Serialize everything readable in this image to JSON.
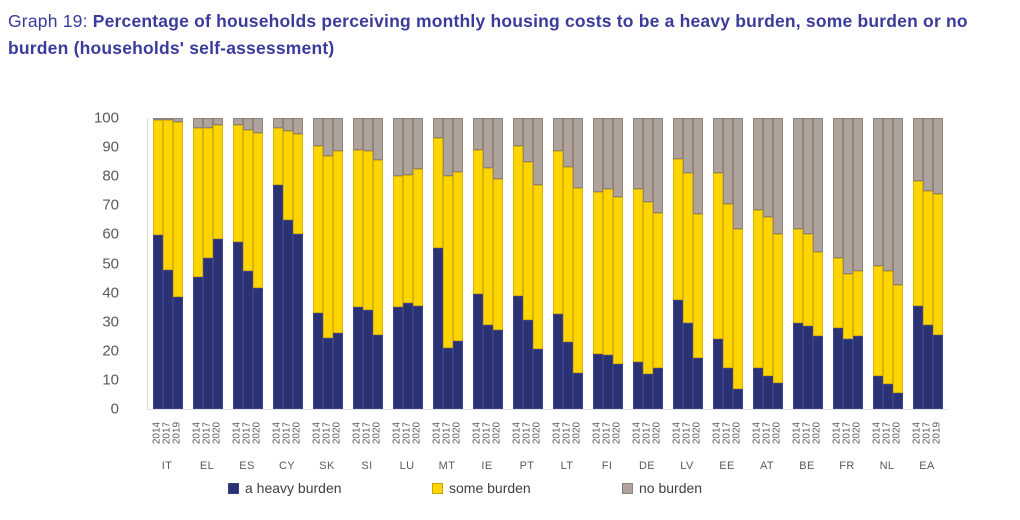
{
  "title": {
    "prefix": "Graph 19: ",
    "text": "Percentage of households perceiving monthly housing costs to be a heavy burden, some burden or no burden (households' self-assessment)"
  },
  "colors": {
    "heavy_burden": "#2B3273",
    "some_burden": "#FFD500",
    "no_burden": "#AFA39C",
    "title_text": "#3B3B9B",
    "axis_text": "#595959"
  },
  "chart_data": {
    "type": "bar",
    "subtype": "stacked-column-100",
    "ylim": [
      0,
      100
    ],
    "yticks": [
      0,
      10,
      20,
      30,
      40,
      50,
      60,
      70,
      80,
      90,
      100
    ],
    "grid": false,
    "legend_position": "bottom",
    "series_meta": [
      {
        "key": "heavy",
        "label": "a heavy burden",
        "color": "#2B3273"
      },
      {
        "key": "some",
        "label": "some burden",
        "color": "#FFD500"
      },
      {
        "key": "no",
        "label": "no burden",
        "color": "#AFA39C"
      }
    ],
    "groups": [
      {
        "country": "IT",
        "years": [
          "2014",
          "2017",
          "2019"
        ],
        "heavy": [
          60,
          48,
          38.5
        ],
        "some": [
          39.5,
          51.5,
          60
        ],
        "no": [
          0.5,
          0.5,
          1.5
        ]
      },
      {
        "country": "EL",
        "years": [
          "2014",
          "2017",
          "2020"
        ],
        "heavy": [
          45.5,
          52,
          58.5
        ],
        "some": [
          51,
          44.5,
          39
        ],
        "no": [
          3.5,
          3.5,
          2.5
        ]
      },
      {
        "country": "ES",
        "years": [
          "2014",
          "2017",
          "2020"
        ],
        "heavy": [
          57.5,
          47.5,
          41.5
        ],
        "some": [
          40,
          48.5,
          53.5
        ],
        "no": [
          2.5,
          4,
          5
        ]
      },
      {
        "country": "CY",
        "years": [
          "2014",
          "2017",
          "2020"
        ],
        "heavy": [
          77,
          65,
          60
        ],
        "some": [
          19.5,
          30.5,
          34.5
        ],
        "no": [
          3.5,
          4.5,
          5.5
        ]
      },
      {
        "country": "SK",
        "years": [
          "2014",
          "2017",
          "2020"
        ],
        "heavy": [
          33,
          24.5,
          26
        ],
        "some": [
          57.5,
          62.5,
          62.5
        ],
        "no": [
          9.5,
          13,
          11.5
        ]
      },
      {
        "country": "SI",
        "years": [
          "2014",
          "2017",
          "2020"
        ],
        "heavy": [
          35,
          34,
          25.5
        ],
        "some": [
          54,
          54.5,
          60
        ],
        "no": [
          11,
          11.5,
          14.5
        ]
      },
      {
        "country": "LU",
        "years": [
          "2014",
          "2017",
          "2020"
        ],
        "heavy": [
          35,
          36.5,
          35.5
        ],
        "some": [
          45,
          44,
          47
        ],
        "no": [
          20,
          19.5,
          17.5
        ]
      },
      {
        "country": "MT",
        "years": [
          "2014",
          "2017",
          "2020"
        ],
        "heavy": [
          55.5,
          21,
          23.5
        ],
        "some": [
          37.5,
          59,
          58
        ],
        "no": [
          7,
          20,
          18.5
        ]
      },
      {
        "country": "IE",
        "years": [
          "2014",
          "2017",
          "2020"
        ],
        "heavy": [
          39.5,
          29,
          27
        ],
        "some": [
          49.5,
          54,
          52
        ],
        "no": [
          11,
          17,
          21
        ]
      },
      {
        "country": "PT",
        "years": [
          "2014",
          "2017",
          "2020"
        ],
        "heavy": [
          39,
          30.5,
          20.5
        ],
        "some": [
          51.5,
          54.5,
          56.5
        ],
        "no": [
          9.5,
          15,
          23
        ]
      },
      {
        "country": "LT",
        "years": [
          "2014",
          "2017",
          "2020"
        ],
        "heavy": [
          32.5,
          23,
          12.5
        ],
        "some": [
          56,
          60,
          63.5
        ],
        "no": [
          11.5,
          17,
          24
        ]
      },
      {
        "country": "FI",
        "years": [
          "2014",
          "2017",
          "2020"
        ],
        "heavy": [
          19,
          18.5,
          15.5
        ],
        "some": [
          55.5,
          57,
          57.5
        ],
        "no": [
          25.5,
          24.5,
          27
        ]
      },
      {
        "country": "DE",
        "years": [
          "2014",
          "2017",
          "2020"
        ],
        "heavy": [
          16,
          12,
          14
        ],
        "some": [
          59.5,
          59,
          53.5
        ],
        "no": [
          24.5,
          29,
          32.5
        ]
      },
      {
        "country": "LV",
        "years": [
          "2014",
          "2017",
          "2020"
        ],
        "heavy": [
          37.5,
          29.5,
          17.5
        ],
        "some": [
          48.5,
          51.5,
          49.5
        ],
        "no": [
          14,
          19,
          33
        ]
      },
      {
        "country": "EE",
        "years": [
          "2014",
          "2017",
          "2020"
        ],
        "heavy": [
          24,
          14,
          7
        ],
        "some": [
          57,
          56.5,
          55
        ],
        "no": [
          19,
          29.5,
          38
        ]
      },
      {
        "country": "AT",
        "years": [
          "2014",
          "2017",
          "2020"
        ],
        "heavy": [
          14,
          11.5,
          9
        ],
        "some": [
          54.5,
          54.5,
          51
        ],
        "no": [
          31.5,
          34,
          40
        ]
      },
      {
        "country": "BE",
        "years": [
          "2014",
          "2017",
          "2020"
        ],
        "heavy": [
          29.5,
          28.5,
          25
        ],
        "some": [
          32.5,
          31.5,
          29
        ],
        "no": [
          38,
          40,
          46
        ]
      },
      {
        "country": "FR",
        "years": [
          "2014",
          "2017",
          "2020"
        ],
        "heavy": [
          28,
          24,
          25
        ],
        "some": [
          24,
          22.5,
          22.5
        ],
        "no": [
          48,
          53.5,
          52.5
        ]
      },
      {
        "country": "NL",
        "years": [
          "2014",
          "2017",
          "2020"
        ],
        "heavy": [
          11.5,
          8.5,
          5.5
        ],
        "some": [
          37.5,
          39,
          37
        ],
        "no": [
          51,
          52.5,
          57.5
        ]
      },
      {
        "country": "EA",
        "years": [
          "2014",
          "2017",
          "2019"
        ],
        "heavy": [
          35.5,
          29,
          25.5
        ],
        "some": [
          43,
          46,
          48.5
        ],
        "no": [
          21.5,
          25,
          26
        ]
      }
    ]
  }
}
